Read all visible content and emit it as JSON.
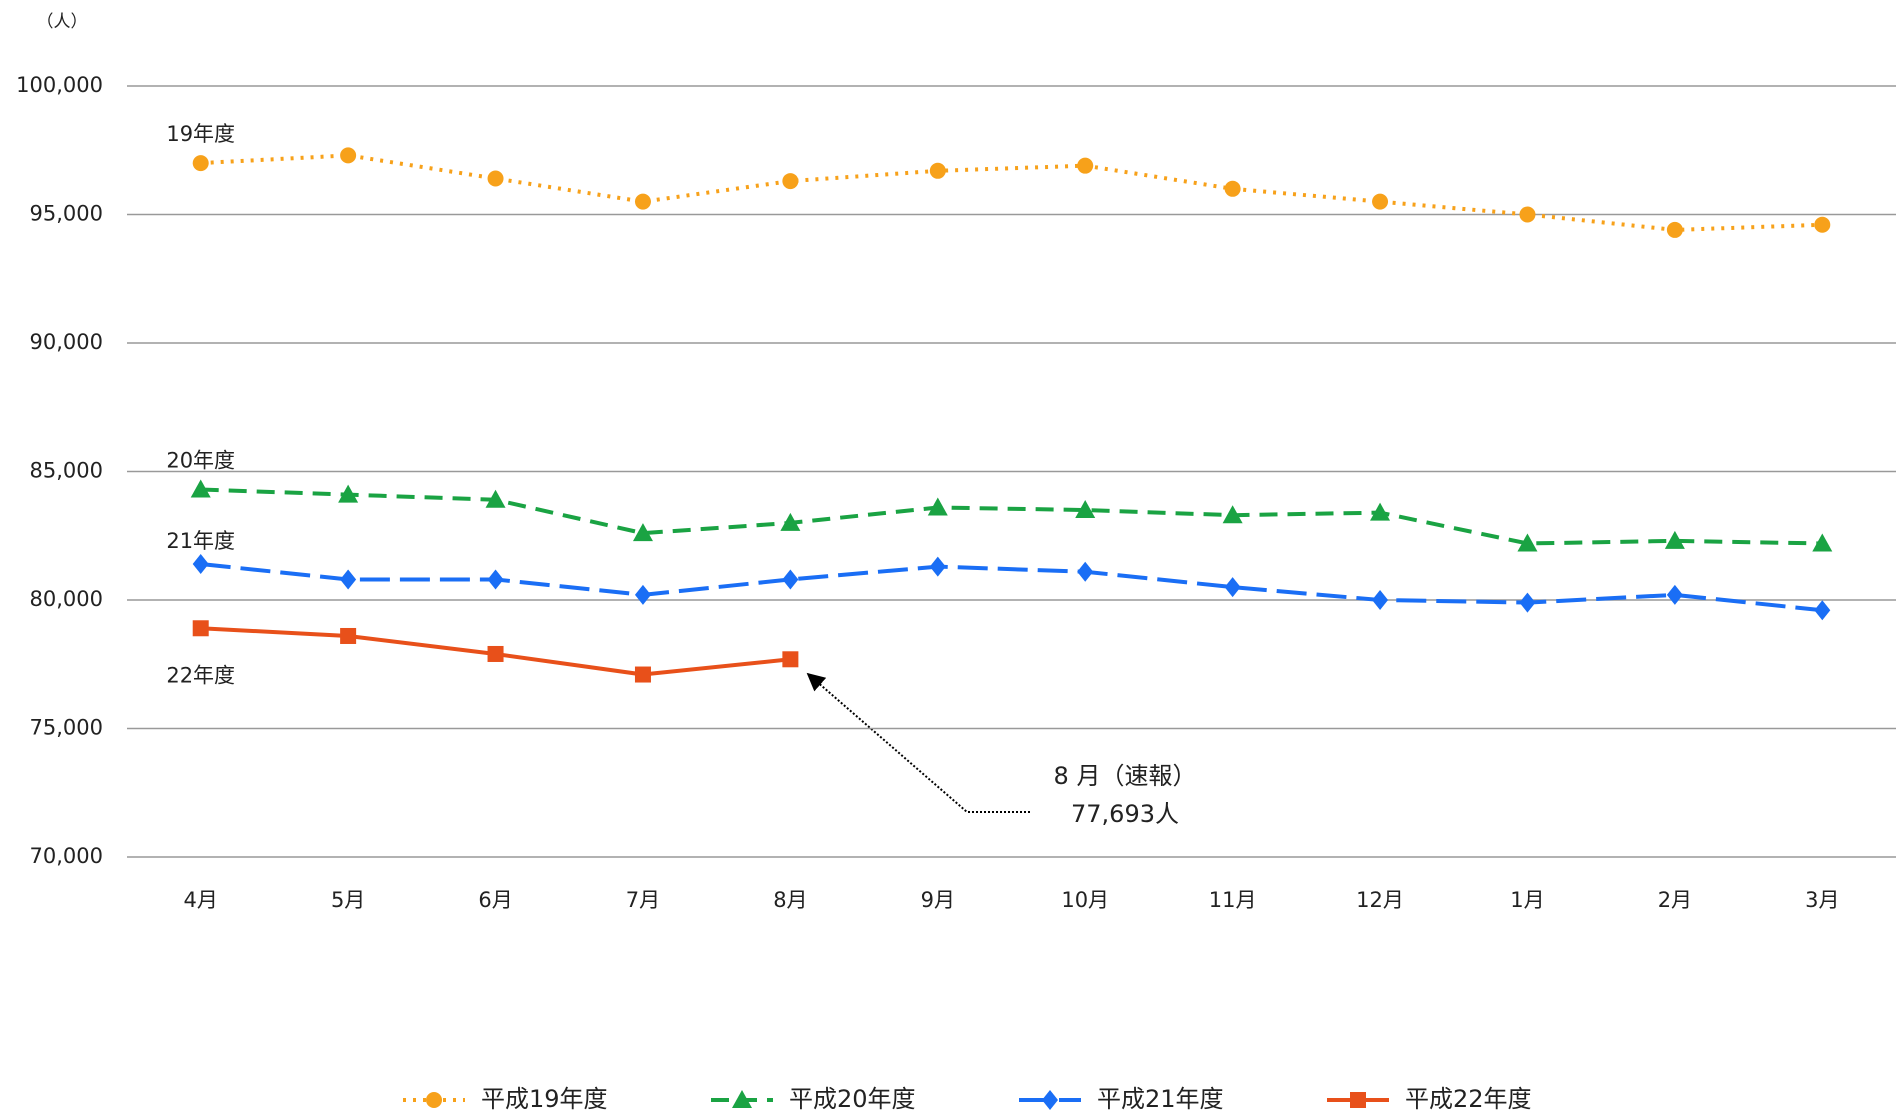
{
  "chart_data": {
    "type": "line",
    "y_unit_label": "（人）",
    "categories": [
      "4月",
      "5月",
      "6月",
      "7月",
      "8月",
      "9月",
      "10月",
      "11月",
      "12月",
      "1月",
      "2月",
      "3月"
    ],
    "series": [
      {
        "name": "平成19年度",
        "label": "19年度",
        "color": "#f7a11a",
        "line_style": "dotted",
        "marker": "circle",
        "values": [
          97000,
          97300,
          96400,
          95500,
          96300,
          96700,
          96900,
          96000,
          95500,
          95000,
          94400,
          94600
        ]
      },
      {
        "name": "平成20年度",
        "label": "20年度",
        "color": "#1aa343",
        "line_style": "dashed",
        "marker": "triangle",
        "values": [
          84300,
          84100,
          83900,
          82600,
          83000,
          83600,
          83500,
          83300,
          83400,
          82200,
          82300,
          82200
        ]
      },
      {
        "name": "平成21年度",
        "label": "21年度",
        "color": "#1a6ef5",
        "line_style": "longdash",
        "marker": "diamond",
        "values": [
          81400,
          80800,
          80800,
          80200,
          80800,
          81300,
          81100,
          80500,
          80000,
          79900,
          80200,
          79600
        ]
      },
      {
        "name": "平成22年度",
        "label": "22年度",
        "color": "#e8501a",
        "line_style": "solid",
        "marker": "square",
        "values": [
          78900,
          78600,
          77900,
          77100,
          77693,
          null,
          null,
          null,
          null,
          null,
          null,
          null
        ]
      }
    ],
    "ylim": [
      70000,
      100000
    ],
    "yticks": [
      {
        "value": 70000,
        "label": "70,000"
      },
      {
        "value": 75000,
        "label": "75,000"
      },
      {
        "value": 80000,
        "label": "80,000"
      },
      {
        "value": 85000,
        "label": "85,000"
      },
      {
        "value": 90000,
        "label": "90,000"
      },
      {
        "value": 95000,
        "label": "95,000"
      },
      {
        "value": 100000,
        "label": "100,000"
      }
    ],
    "grid": true,
    "legend": "bottom",
    "annotation": [
      "8 月（速報）",
      "77,693人"
    ]
  }
}
